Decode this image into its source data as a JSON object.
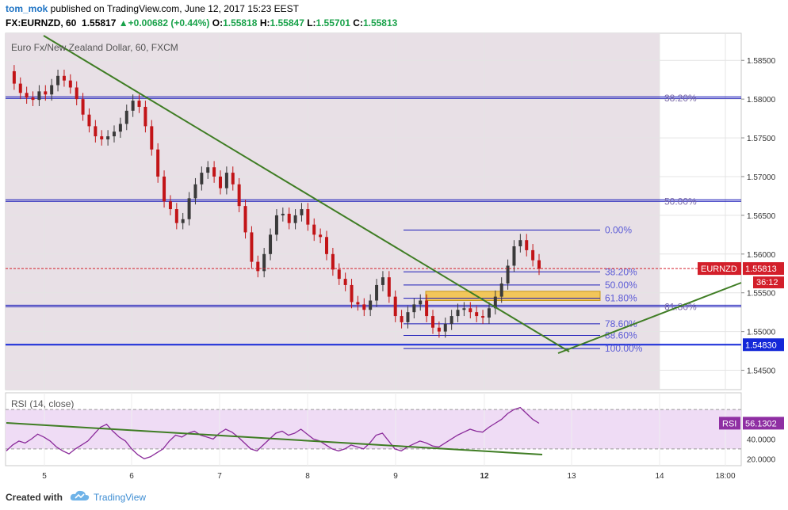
{
  "header": {
    "user": "tom_mok",
    "published_text": " published on TradingView.com, June 12, 2017 15:23 EEST",
    "symbol": "FX:EURNZD, 60",
    "last": "1.55817",
    "change": "+0.00682 (+0.44%)",
    "open_label": "O:",
    "open": "1.55818",
    "high_label": "H:",
    "high": "1.55847",
    "low_label": "L:",
    "low": "1.55701",
    "close_label": "C:",
    "close": "1.55813"
  },
  "footer": {
    "created": "Created with",
    "brand": "TradingView"
  },
  "colors": {
    "up": "#3a3a3a",
    "down": "#c21417",
    "background_shade": "#e8e0e6",
    "fib": "#1a1ab8",
    "trend": "#3f7d24",
    "rsi": "#8a2a9a",
    "rsi_band": "#efdcf5",
    "price_line": "#d31f2a",
    "support_label": "#1f3fe0"
  },
  "chart_data": [
    {
      "type": "candlestick",
      "title": "Euro Fx/New Zealand Dollar, 60, FXCM",
      "x_tick_labels": [
        "5",
        "6",
        "7",
        "8",
        "9",
        "12",
        "13",
        "14",
        "18:00"
      ],
      "y_tick_labels": [
        "1.58500",
        "1.58000",
        "1.57500",
        "1.57000",
        "1.56500",
        "1.56000",
        "1.55500",
        "1.55000",
        "1.54500"
      ],
      "ylim": [
        1.5425,
        1.5885
      ],
      "grid": true,
      "price_path": [
        1.5836,
        1.582,
        1.5808,
        1.5802,
        1.5799,
        1.581,
        1.5806,
        1.5818,
        1.583,
        1.5824,
        1.5815,
        1.58,
        1.578,
        1.5765,
        1.5752,
        1.5748,
        1.5752,
        1.5758,
        1.5768,
        1.5785,
        1.5798,
        1.579,
        1.5765,
        1.5735,
        1.57,
        1.5668,
        1.5658,
        1.564,
        1.5645,
        1.5672,
        1.569,
        1.5705,
        1.5712,
        1.57,
        1.5685,
        1.5705,
        1.569,
        1.5662,
        1.5628,
        1.559,
        1.5578,
        1.56,
        1.5625,
        1.565,
        1.5652,
        1.564,
        1.565,
        1.5658,
        1.5638,
        1.5625,
        1.5622,
        1.56,
        1.558,
        1.5568,
        1.556,
        1.5538,
        1.5535,
        1.5528,
        1.554,
        1.556,
        1.557,
        1.5545,
        1.552,
        1.5512,
        1.5525,
        1.5535,
        1.554,
        1.552,
        1.5505,
        1.55,
        1.551,
        1.552,
        1.5528,
        1.553,
        1.5525,
        1.552,
        1.5518,
        1.553,
        1.5545,
        1.5562,
        1.5585,
        1.561,
        1.5618,
        1.5605,
        1.5592,
        1.5581
      ],
      "last_price_label": "EURNZD",
      "last_price": "1.55813",
      "countdown": "36:12",
      "support_line": {
        "value": 1.5483,
        "label": "1.54830"
      },
      "fib_retracement_large": {
        "levels": [
          {
            "label": "38.20%",
            "value": 1.5802
          },
          {
            "label": "50.00%",
            "value": 1.5669
          },
          {
            "label": "61.80%",
            "value": 1.5533
          }
        ]
      },
      "fib_retracement_small": {
        "levels": [
          {
            "label": "0.00%",
            "value": 1.5631
          },
          {
            "label": "38.20%",
            "value": 1.5577
          },
          {
            "label": "50.00%",
            "value": 1.556
          },
          {
            "label": "61.80%",
            "value": 1.5543
          },
          {
            "label": "78.60%",
            "value": 1.551
          },
          {
            "label": "88.60%",
            "value": 1.5495
          },
          {
            "label": "100.00%",
            "value": 1.5478
          }
        ]
      },
      "zone": {
        "from": 1.554,
        "to": 1.5552
      }
    },
    {
      "type": "line",
      "title": "RSI (14, close)",
      "y_tick_labels": [
        "40.0000",
        "20.0000"
      ],
      "ylim": [
        13,
        87
      ],
      "last_value": "56.1302",
      "last_label": "RSI",
      "band": [
        30,
        70
      ],
      "values": [
        28,
        34,
        38,
        36,
        40,
        45,
        42,
        38,
        32,
        28,
        25,
        30,
        34,
        38,
        45,
        52,
        55,
        48,
        42,
        38,
        30,
        24,
        20,
        22,
        26,
        30,
        38,
        44,
        42,
        46,
        48,
        44,
        42,
        40,
        46,
        50,
        47,
        42,
        36,
        30,
        28,
        34,
        40,
        46,
        48,
        44,
        46,
        50,
        45,
        40,
        38,
        34,
        30,
        28,
        30,
        34,
        32,
        30,
        36,
        44,
        46,
        38,
        30,
        28,
        32,
        35,
        38,
        36,
        33,
        32,
        36,
        40,
        44,
        47,
        50,
        48,
        47,
        52,
        56,
        60,
        66,
        70,
        72,
        66,
        60,
        56
      ]
    }
  ]
}
